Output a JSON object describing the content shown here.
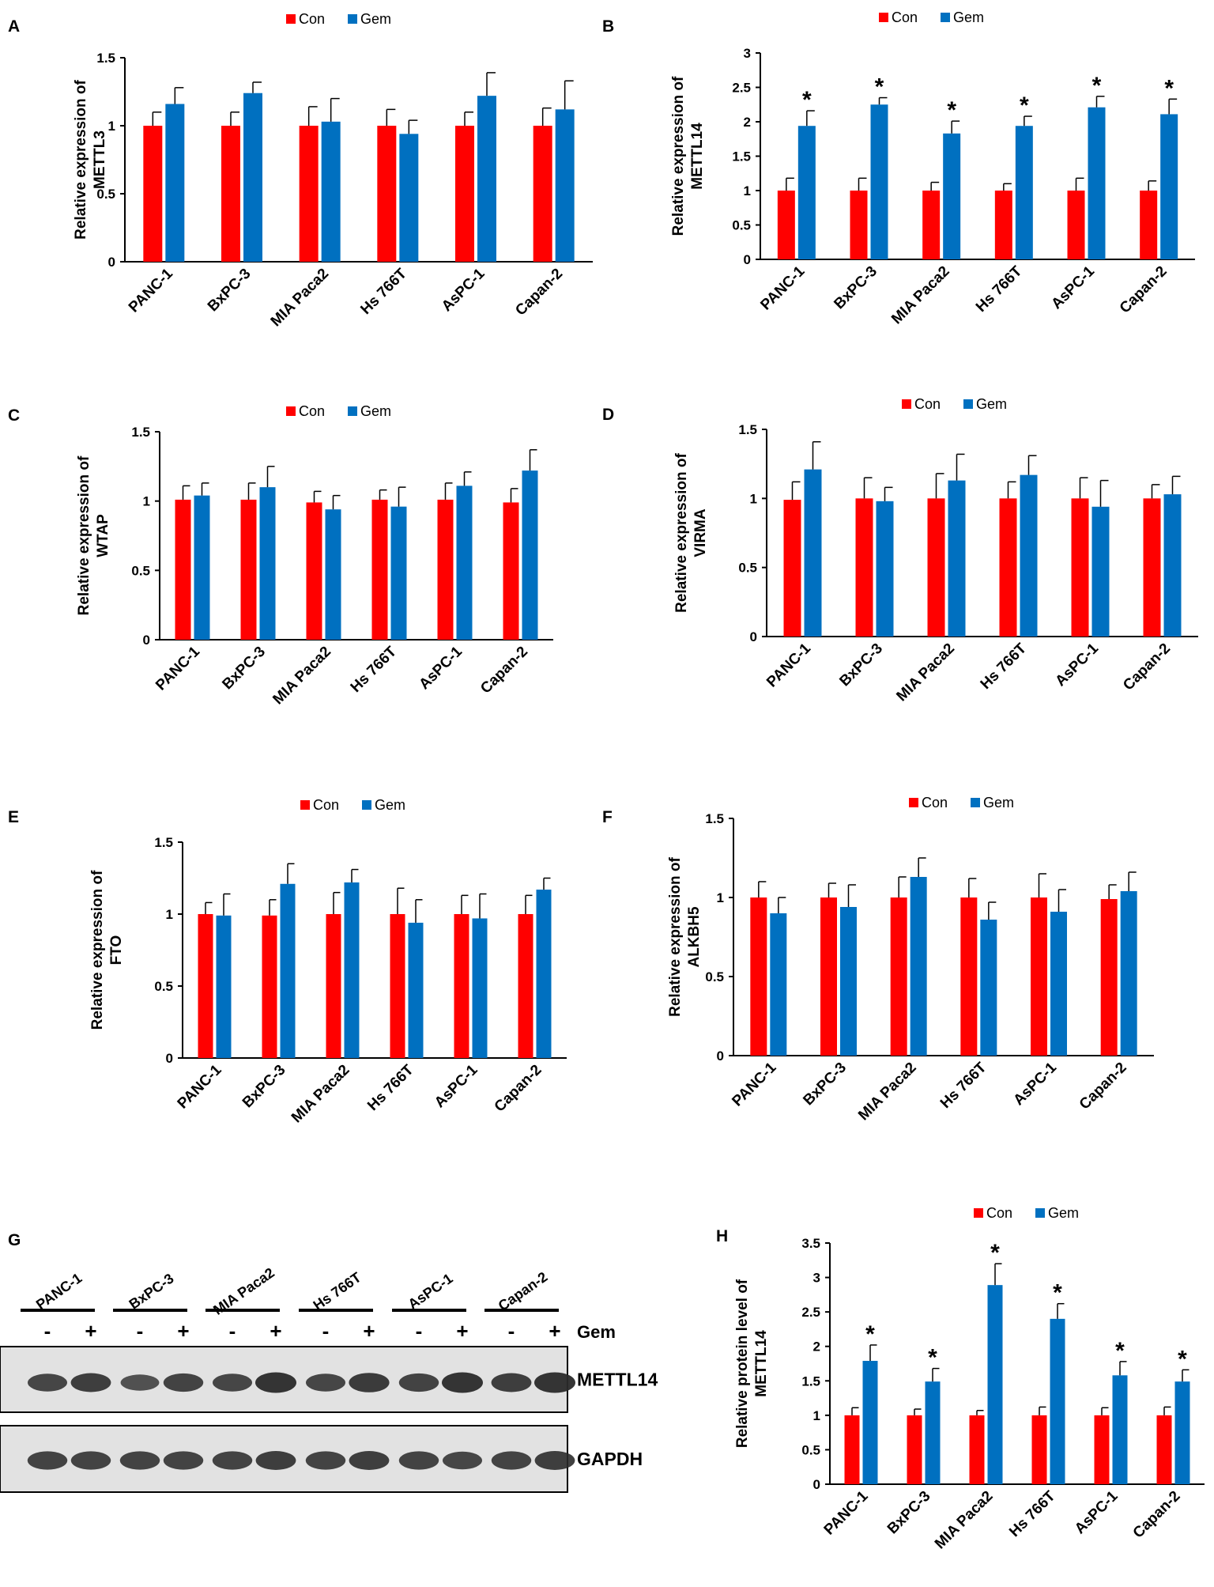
{
  "colors": {
    "con": "#ff0000",
    "gem": "#0070c0",
    "axis": "#000000",
    "blot_bg": "#e2e2e2",
    "band": "#2a2a2a"
  },
  "legend": {
    "con": "Con",
    "gem": "Gem"
  },
  "cell_lines": [
    "PANC-1",
    "BxPC-3",
    "MIA Paca2",
    "Hs 766T",
    "AsPC-1",
    "Capan-2"
  ],
  "chart_data": [
    {
      "panel": "A",
      "type": "bar",
      "title": "",
      "xlabel": "",
      "ylabel": [
        "Relative expression of",
        "METTL3"
      ],
      "ylim": [
        0,
        1.5
      ],
      "yticks": [
        "0",
        "0.5",
        "1",
        "1.5"
      ],
      "categories": [
        "PANC-1",
        "BxPC-3",
        "MIA Paca2",
        "Hs 766T",
        "AsPC-1",
        "Capan-2"
      ],
      "series": [
        {
          "name": "Con",
          "values": [
            1.0,
            1.0,
            1.0,
            1.0,
            1.0,
            1.0
          ],
          "errors": [
            0.1,
            0.1,
            0.14,
            0.12,
            0.1,
            0.13
          ]
        },
        {
          "name": "Gem",
          "values": [
            1.16,
            1.24,
            1.03,
            0.94,
            1.22,
            1.12
          ],
          "errors": [
            0.12,
            0.08,
            0.17,
            0.1,
            0.17,
            0.21
          ]
        }
      ],
      "significant": [
        false,
        false,
        false,
        false,
        false,
        false
      ]
    },
    {
      "panel": "B",
      "type": "bar",
      "title": "",
      "xlabel": "",
      "ylabel": [
        "Relative expression of",
        "METTL14"
      ],
      "ylim": [
        0,
        3
      ],
      "yticks": [
        "0",
        "0.5",
        "1",
        "1.5",
        "2",
        "2.5",
        "3"
      ],
      "categories": [
        "PANC-1",
        "BxPC-3",
        "MIA Paca2",
        "Hs 766T",
        "AsPC-1",
        "Capan-2"
      ],
      "series": [
        {
          "name": "Con",
          "values": [
            1.0,
            1.0,
            1.0,
            1.0,
            1.0,
            1.0
          ],
          "errors": [
            0.18,
            0.18,
            0.12,
            0.1,
            0.18,
            0.14
          ]
        },
        {
          "name": "Gem",
          "values": [
            1.94,
            2.25,
            1.83,
            1.94,
            2.21,
            2.11
          ],
          "errors": [
            0.22,
            0.1,
            0.18,
            0.14,
            0.16,
            0.22
          ]
        }
      ],
      "significant": [
        true,
        true,
        true,
        true,
        true,
        true
      ],
      "sig_mark": "*"
    },
    {
      "panel": "C",
      "type": "bar",
      "title": "",
      "xlabel": "",
      "ylabel": [
        "Relative expression of",
        "WTAP"
      ],
      "ylim": [
        0,
        1.5
      ],
      "yticks": [
        "0",
        "0.5",
        "1",
        "1.5"
      ],
      "categories": [
        "PANC-1",
        "BxPC-3",
        "MIA Paca2",
        "Hs 766T",
        "AsPC-1",
        "Capan-2"
      ],
      "series": [
        {
          "name": "Con",
          "values": [
            1.01,
            1.01,
            0.99,
            1.01,
            1.01,
            0.99
          ],
          "errors": [
            0.1,
            0.12,
            0.08,
            0.07,
            0.12,
            0.1
          ]
        },
        {
          "name": "Gem",
          "values": [
            1.04,
            1.1,
            0.94,
            0.96,
            1.11,
            1.22
          ],
          "errors": [
            0.09,
            0.15,
            0.1,
            0.14,
            0.1,
            0.15
          ]
        }
      ],
      "significant": [
        false,
        false,
        false,
        false,
        false,
        false
      ]
    },
    {
      "panel": "D",
      "type": "bar",
      "title": "",
      "xlabel": "",
      "ylabel": [
        "Relative expression of",
        "VIRMA"
      ],
      "ylim": [
        0,
        1.5
      ],
      "yticks": [
        "0",
        "0.5",
        "1",
        "1.5"
      ],
      "categories": [
        "PANC-1",
        "BxPC-3",
        "MIA Paca2",
        "Hs 766T",
        "AsPC-1",
        "Capan-2"
      ],
      "series": [
        {
          "name": "Con",
          "values": [
            0.99,
            1.0,
            1.0,
            1.0,
            1.0,
            1.0
          ],
          "errors": [
            0.13,
            0.15,
            0.18,
            0.12,
            0.15,
            0.1
          ]
        },
        {
          "name": "Gem",
          "values": [
            1.21,
            0.98,
            1.13,
            1.17,
            0.94,
            1.03
          ],
          "errors": [
            0.2,
            0.1,
            0.19,
            0.14,
            0.19,
            0.13
          ]
        }
      ],
      "significant": [
        false,
        false,
        false,
        false,
        false,
        false
      ]
    },
    {
      "panel": "E",
      "type": "bar",
      "title": "",
      "xlabel": "",
      "ylabel": [
        "Relative expression of",
        "FTO"
      ],
      "ylim": [
        0,
        1.5
      ],
      "yticks": [
        "0",
        "0.5",
        "1",
        "1.5"
      ],
      "categories": [
        "PANC-1",
        "BxPC-3",
        "MIA Paca2",
        "Hs 766T",
        "AsPC-1",
        "Capan-2"
      ],
      "series": [
        {
          "name": "Con",
          "values": [
            1.0,
            0.99,
            1.0,
            1.0,
            1.0,
            1.0
          ],
          "errors": [
            0.08,
            0.11,
            0.15,
            0.18,
            0.13,
            0.13
          ]
        },
        {
          "name": "Gem",
          "values": [
            0.99,
            1.21,
            1.22,
            0.94,
            0.97,
            1.17
          ],
          "errors": [
            0.15,
            0.14,
            0.09,
            0.16,
            0.17,
            0.08
          ]
        }
      ],
      "significant": [
        false,
        false,
        false,
        false,
        false,
        false
      ]
    },
    {
      "panel": "F",
      "type": "bar",
      "title": "",
      "xlabel": "",
      "ylabel": [
        "Relative expression of",
        "ALKBH5"
      ],
      "ylim": [
        0,
        1.5
      ],
      "yticks": [
        "0",
        "0.5",
        "1",
        "1.5"
      ],
      "categories": [
        "PANC-1",
        "BxPC-3",
        "MIA Paca2",
        "Hs 766T",
        "AsPC-1",
        "Capan-2"
      ],
      "series": [
        {
          "name": "Con",
          "values": [
            1.0,
            1.0,
            1.0,
            1.0,
            1.0,
            0.99
          ],
          "errors": [
            0.1,
            0.09,
            0.13,
            0.12,
            0.15,
            0.09
          ]
        },
        {
          "name": "Gem",
          "values": [
            0.9,
            0.94,
            1.13,
            0.86,
            0.91,
            1.04
          ],
          "errors": [
            0.1,
            0.14,
            0.12,
            0.11,
            0.14,
            0.12
          ]
        }
      ],
      "significant": [
        false,
        false,
        false,
        false,
        false,
        false
      ]
    },
    {
      "panel": "H",
      "type": "bar",
      "title": "",
      "xlabel": "",
      "ylabel": [
        "Relative protein level of",
        "METTL14"
      ],
      "ylim": [
        0,
        3.5
      ],
      "yticks": [
        "0",
        "0.5",
        "1",
        "1.5",
        "2",
        "2.5",
        "3",
        "3.5"
      ],
      "categories": [
        "PANC-1",
        "BxPC-3",
        "MIA Paca2",
        "Hs 766T",
        "AsPC-1",
        "Capan-2"
      ],
      "series": [
        {
          "name": "Con",
          "values": [
            1.0,
            1.0,
            1.0,
            1.0,
            1.0,
            1.0
          ],
          "errors": [
            0.11,
            0.09,
            0.07,
            0.12,
            0.11,
            0.12
          ]
        },
        {
          "name": "Gem",
          "values": [
            1.79,
            1.49,
            2.89,
            2.4,
            1.58,
            1.49
          ],
          "errors": [
            0.23,
            0.19,
            0.31,
            0.22,
            0.2,
            0.17
          ]
        }
      ],
      "significant": [
        true,
        true,
        true,
        true,
        true,
        true
      ],
      "sig_mark": "*"
    }
  ],
  "blot": {
    "label": "G",
    "cell_lines": [
      "PANC-1",
      "BxPC-3",
      "MIA Paca2",
      "Hs 766T",
      "AsPC-1",
      "Capan-2"
    ],
    "lane_signs": [
      "-",
      "+",
      "-",
      "+",
      "-",
      "+",
      "-",
      "+",
      "-",
      "+",
      "-",
      "+"
    ],
    "treatment_label": "Gem",
    "proteins": [
      "METTL14",
      "GAPDH"
    ],
    "mettl14_intensity": [
      0.75,
      0.85,
      0.6,
      0.8,
      0.75,
      1.0,
      0.75,
      0.9,
      0.8,
      1.0,
      0.85,
      1.0
    ],
    "gapdh_intensity": [
      0.8,
      0.8,
      0.8,
      0.8,
      0.8,
      0.85,
      0.8,
      0.85,
      0.8,
      0.75,
      0.8,
      0.85
    ]
  }
}
